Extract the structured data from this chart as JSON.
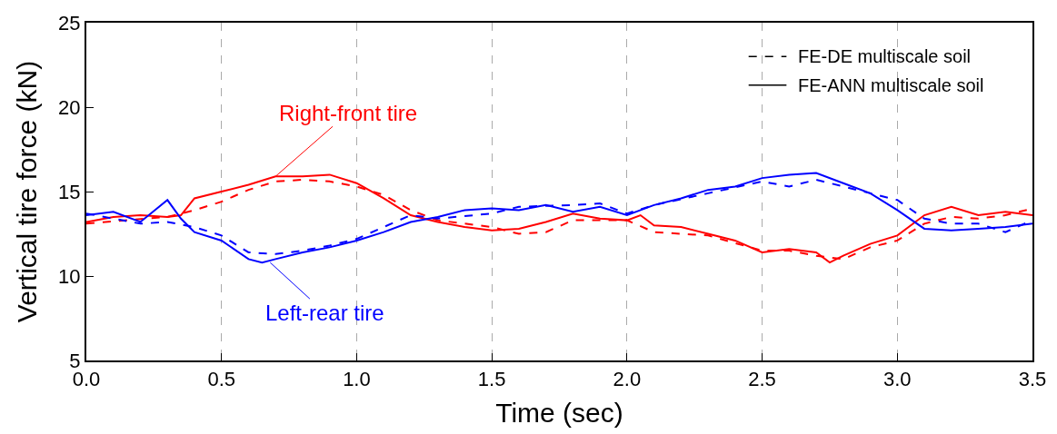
{
  "chart_data": {
    "type": "line",
    "xlabel": "Time (sec)",
    "ylabel": "Vertical tire force (kN)",
    "xlim": [
      0,
      3.5
    ],
    "ylim": [
      5,
      25
    ],
    "xticks": [
      {
        "value": 0,
        "label": "0.0"
      },
      {
        "value": 0.5,
        "label": "0.5"
      },
      {
        "value": 1,
        "label": "1.0"
      },
      {
        "value": 1.5,
        "label": "1.5"
      },
      {
        "value": 2,
        "label": "2.0"
      },
      {
        "value": 2.5,
        "label": "2.5"
      },
      {
        "value": 3,
        "label": "3.0"
      },
      {
        "value": 3.5,
        "label": "3.5"
      }
    ],
    "yticks": [
      5,
      10,
      15,
      20,
      25
    ],
    "grid": "x",
    "legend": "top right",
    "marker": "none",
    "series": [
      {
        "color": "#ff0000",
        "line_style": "solid",
        "x": [
          0,
          0.1,
          0.2,
          0.3,
          0.35,
          0.4,
          0.5,
          0.6,
          0.7,
          0.8,
          0.9,
          1.0,
          1.1,
          1.2,
          1.3,
          1.4,
          1.5,
          1.6,
          1.7,
          1.8,
          1.9,
          2.0,
          2.05,
          2.1,
          2.2,
          2.3,
          2.4,
          2.5,
          2.6,
          2.7,
          2.75,
          2.8,
          2.9,
          3.0,
          3.1,
          3.2,
          3.3,
          3.4,
          3.5
        ],
        "values": [
          13.2,
          13.5,
          13.6,
          13.5,
          13.6,
          14.6,
          15.0,
          15.4,
          15.9,
          15.9,
          16.0,
          15.5,
          14.6,
          13.6,
          13.2,
          12.9,
          12.7,
          12.8,
          13.2,
          13.7,
          13.4,
          13.3,
          13.6,
          13.0,
          12.9,
          12.5,
          12.1,
          11.4,
          11.6,
          11.4,
          10.8,
          11.2,
          11.9,
          12.4,
          13.6,
          14.1,
          13.6,
          13.8,
          13.6
        ]
      },
      {
        "color": "#ff0000",
        "line_style": "dashed",
        "x": [
          0,
          0.3,
          0.4,
          0.5,
          0.6,
          0.7,
          0.8,
          0.9,
          1.0,
          1.1,
          1.2,
          1.3,
          1.5,
          1.6,
          1.7,
          1.8,
          1.9,
          2.0,
          2.1,
          2.3,
          2.5,
          2.6,
          2.7,
          2.8,
          2.9,
          3.0,
          3.1,
          3.2,
          3.3,
          3.4,
          3.5
        ],
        "values": [
          13.1,
          13.5,
          13.9,
          14.4,
          15.1,
          15.6,
          15.7,
          15.6,
          15.3,
          14.8,
          13.9,
          13.3,
          12.9,
          12.5,
          12.6,
          13.3,
          13.3,
          13.3,
          12.6,
          12.4,
          11.5,
          11.5,
          11.2,
          11.0,
          11.7,
          12.1,
          13.1,
          13.5,
          13.4,
          13.6,
          14.0
        ]
      },
      {
        "color": "#0000ff",
        "line_style": "solid",
        "x": [
          0,
          0.1,
          0.2,
          0.3,
          0.35,
          0.4,
          0.5,
          0.6,
          0.65,
          0.7,
          0.8,
          0.9,
          1.0,
          1.1,
          1.2,
          1.3,
          1.4,
          1.5,
          1.6,
          1.7,
          1.8,
          1.9,
          2.0,
          2.1,
          2.2,
          2.3,
          2.4,
          2.5,
          2.6,
          2.7,
          2.8,
          2.9,
          3.0,
          3.1,
          3.2,
          3.3,
          3.4,
          3.5
        ],
        "values": [
          13.6,
          13.8,
          13.2,
          14.5,
          13.4,
          12.6,
          12.1,
          11.0,
          10.8,
          11.0,
          11.4,
          11.7,
          12.1,
          12.6,
          13.2,
          13.5,
          13.9,
          14.0,
          13.9,
          14.2,
          13.8,
          14.1,
          13.6,
          14.2,
          14.6,
          15.1,
          15.3,
          15.8,
          16.0,
          16.1,
          15.5,
          14.9,
          13.9,
          12.8,
          12.7,
          12.8,
          12.9,
          13.1
        ]
      },
      {
        "color": "#0000ff",
        "line_style": "dashed",
        "x": [
          0,
          0.2,
          0.3,
          0.4,
          0.5,
          0.6,
          0.7,
          0.8,
          0.9,
          1.0,
          1.1,
          1.2,
          1.3,
          1.5,
          1.6,
          1.8,
          1.9,
          2.0,
          2.1,
          2.3,
          2.5,
          2.6,
          2.7,
          2.8,
          2.9,
          3.0,
          3.1,
          3.2,
          3.3,
          3.4,
          3.5
        ],
        "values": [
          13.7,
          13.1,
          13.2,
          12.9,
          12.4,
          11.4,
          11.3,
          11.5,
          11.8,
          12.2,
          12.9,
          13.6,
          13.4,
          13.7,
          14.1,
          14.2,
          14.3,
          13.7,
          14.2,
          14.9,
          15.6,
          15.3,
          15.7,
          15.3,
          14.9,
          14.5,
          13.4,
          13.1,
          13.1,
          12.6,
          13.3
        ]
      },
      {
        "name": "FE-DE multiscale soil",
        "color": "#000000",
        "line_style": "dashed"
      },
      {
        "name": "FE-ANN multiscale soil",
        "color": "#000000",
        "line_style": "solid"
      }
    ],
    "annotations": [
      {
        "text": "Right-front tire",
        "x": 0.7,
        "y": 15.9
      },
      {
        "text": "Left-rear tire",
        "x": 0.68,
        "y": 10.8
      }
    ]
  }
}
